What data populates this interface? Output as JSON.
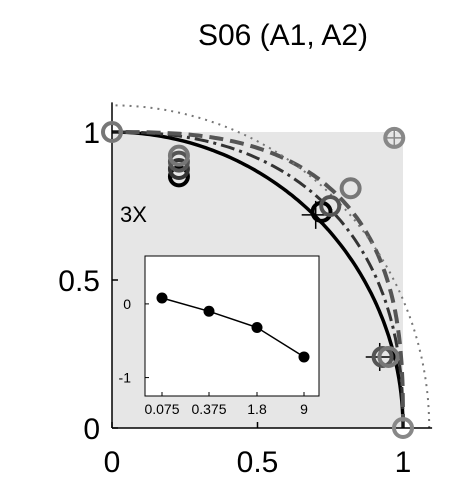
{
  "chart_data": {
    "title": "S06 (A1, A2)",
    "type": "scatter",
    "xlim": [
      0,
      1.1
    ],
    "ylim": [
      0,
      1.1
    ],
    "x_ticks": [
      "0",
      "0.5",
      "1"
    ],
    "y_ticks": [
      "0",
      "0.5",
      "1"
    ],
    "annotation": "3X",
    "colors": {
      "shaded_region": "#e6e6e6",
      "dark": "#000000",
      "mid": "#555555",
      "gray": "#777777",
      "light": "#888888"
    },
    "curves": [
      {
        "style": "solid",
        "color": "#000000",
        "exponent": 2.0
      },
      {
        "style": "dash-dot",
        "color": "#333333",
        "exponent": 2.35
      },
      {
        "style": "dashed",
        "color": "#555555",
        "exponent": 2.8
      },
      {
        "style": "dotted",
        "color": "#777777",
        "exponent": 2.0,
        "radius": 1.09
      }
    ],
    "points": [
      {
        "x": 0.0,
        "y": 1.0,
        "color": "#777777",
        "marker": "circle"
      },
      {
        "x": 0.23,
        "y": 0.85,
        "color": "#000000",
        "marker": "circle"
      },
      {
        "x": 0.23,
        "y": 0.875,
        "color": "#333333",
        "marker": "circle"
      },
      {
        "x": 0.23,
        "y": 0.9,
        "color": "#555555",
        "marker": "circle"
      },
      {
        "x": 0.23,
        "y": 0.92,
        "color": "#777777",
        "marker": "circle"
      },
      {
        "x": 0.7,
        "y": 0.72,
        "color": "#000000",
        "marker": "cross"
      },
      {
        "x": 0.72,
        "y": 0.73,
        "color": "#000000",
        "marker": "circle"
      },
      {
        "x": 0.75,
        "y": 0.75,
        "color": "#555555",
        "marker": "circle"
      },
      {
        "x": 0.82,
        "y": 0.81,
        "color": "#777777",
        "marker": "circle"
      },
      {
        "x": 0.97,
        "y": 0.98,
        "color": "#888888",
        "marker": "circle-cross"
      },
      {
        "x": 0.92,
        "y": 0.24,
        "color": "#000000",
        "marker": "cross"
      },
      {
        "x": 0.93,
        "y": 0.24,
        "color": "#555555",
        "marker": "circle"
      },
      {
        "x": 0.95,
        "y": 0.24,
        "color": "#777777",
        "marker": "circle"
      },
      {
        "x": 1.0,
        "y": 0.0,
        "color": "#888888",
        "marker": "circle"
      }
    ],
    "inset": {
      "type": "line",
      "x_ticks": [
        "0.075",
        "0.375",
        "1.8",
        "9"
      ],
      "y_ticks": [
        "0",
        "-1"
      ],
      "ylim": [
        -1.25,
        0.65
      ],
      "values": [
        0.08,
        -0.1,
        -0.32,
        -0.72
      ]
    }
  }
}
